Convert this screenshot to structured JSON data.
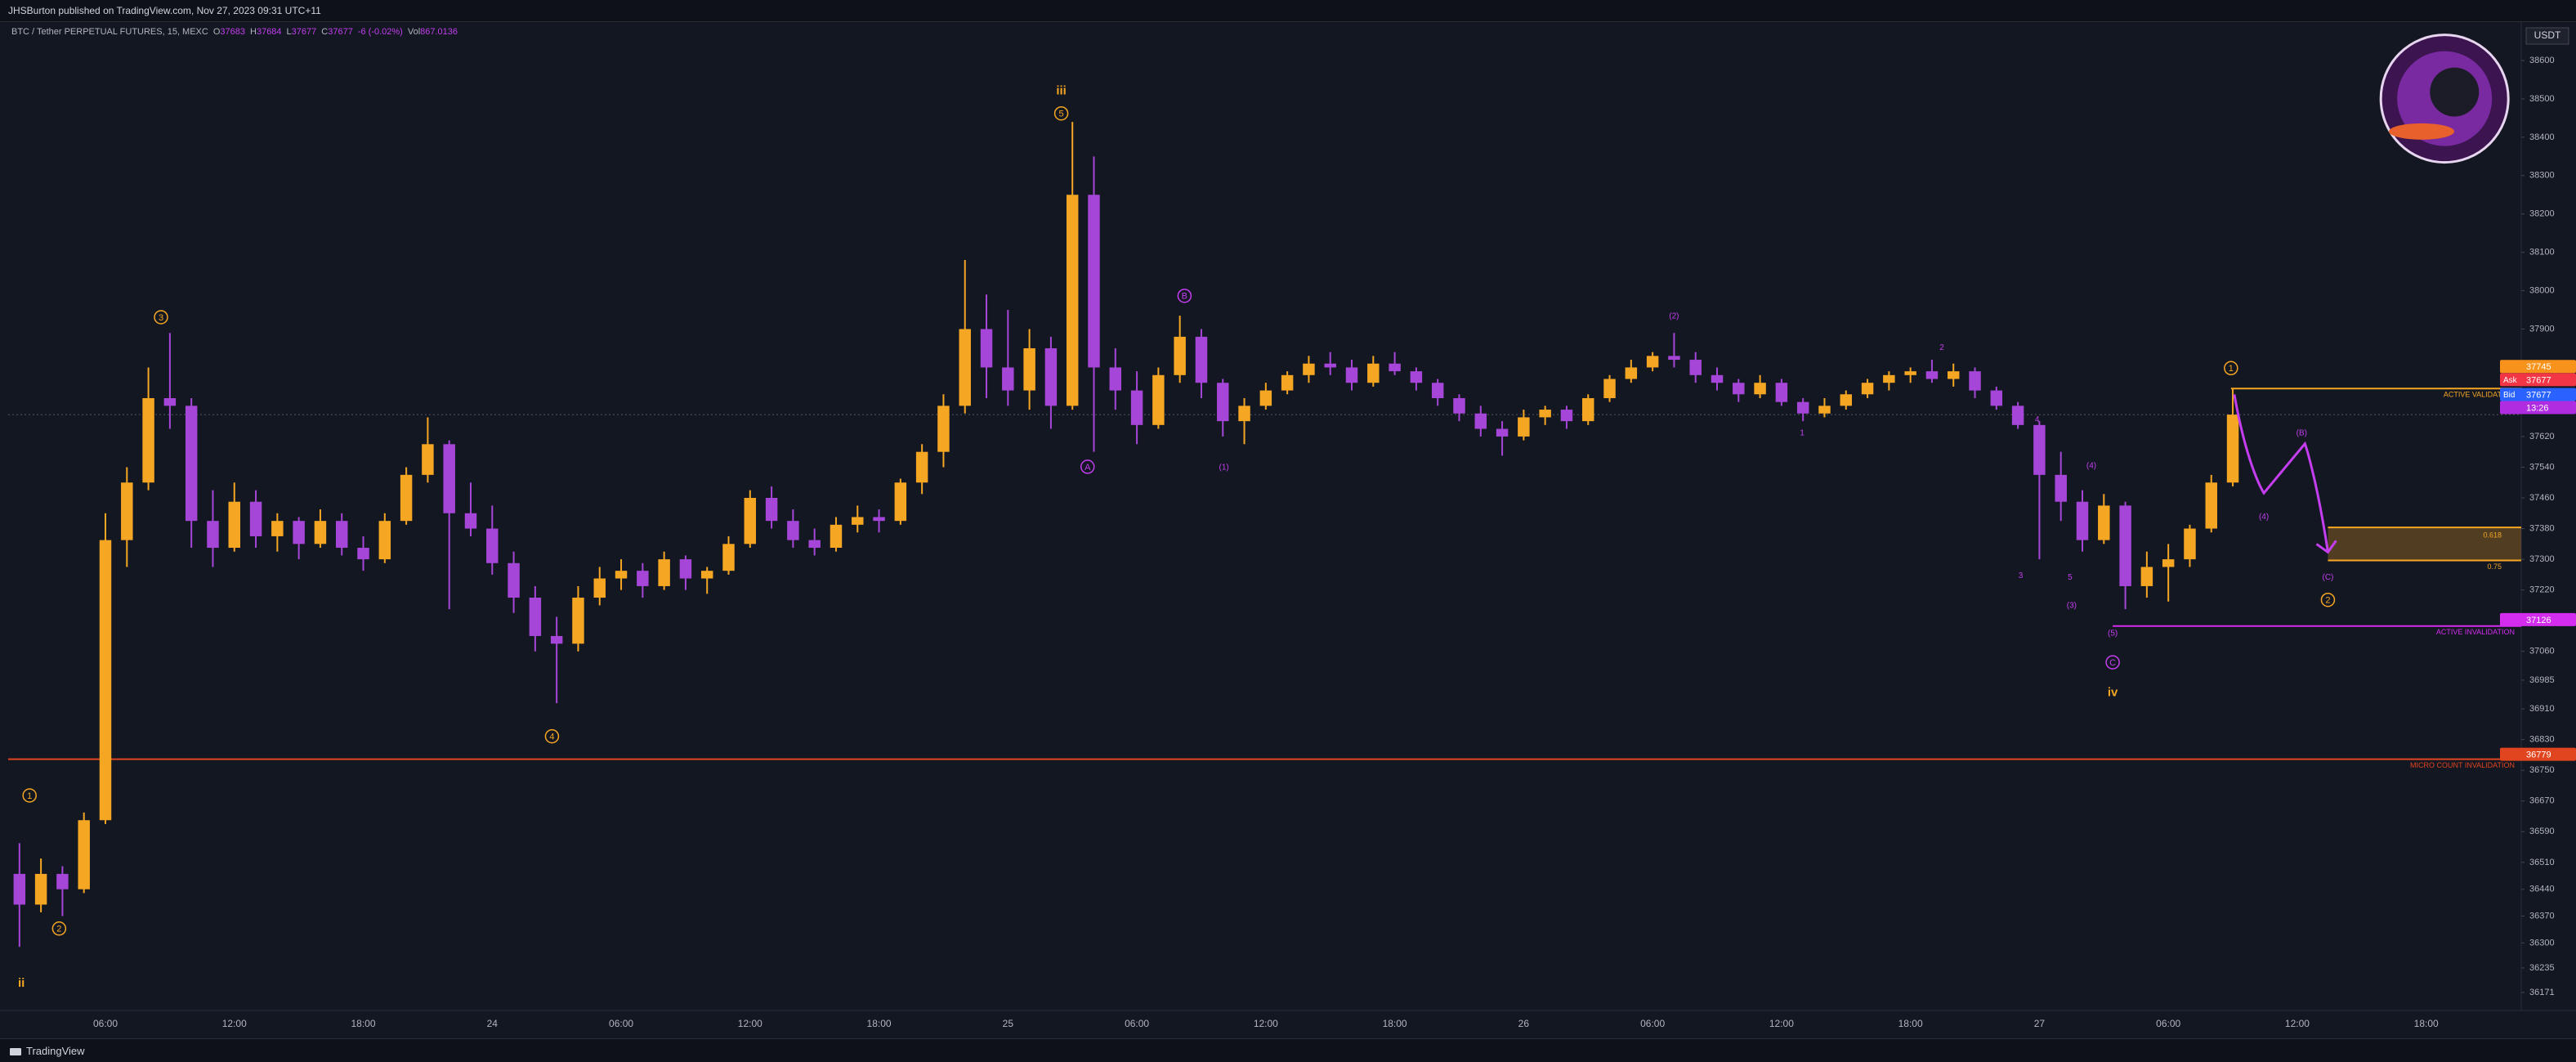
{
  "header": {
    "publisher": "JHSBurton published on TradingView.com, Nov 27, 2023 09:31 UTC+11",
    "symbol": "BTC / Tether PERPETUAL FUTURES, 15, MEXC",
    "legend": [
      {
        "key": "O",
        "value": "37683"
      },
      {
        "key": "H",
        "value": "37684"
      },
      {
        "key": "L",
        "value": "37677"
      },
      {
        "key": "C",
        "value": "37677"
      },
      {
        "value": "-6 (-0.02%)"
      },
      {
        "key": "Vol",
        "value": "867.0136"
      }
    ]
  },
  "chart_data": {
    "type": "candlestick",
    "unit": "USDT",
    "up_color": "#f5a623",
    "down_color": "#a646d8",
    "grid": false,
    "categories": [
      null,
      null,
      null,
      null,
      "06:00",
      null,
      null,
      null,
      null,
      null,
      "12:00",
      null,
      null,
      null,
      null,
      null,
      "18:00",
      null,
      null,
      null,
      null,
      null,
      "24",
      null,
      null,
      null,
      null,
      null,
      "06:00",
      null,
      null,
      null,
      null,
      null,
      "12:00",
      null,
      null,
      null,
      null,
      null,
      "18:00",
      null,
      null,
      null,
      null,
      null,
      "25",
      null,
      null,
      null,
      null,
      null,
      "06:00",
      null,
      null,
      null,
      null,
      null,
      "12:00",
      null,
      null,
      null,
      null,
      null,
      "18:00",
      null,
      null,
      null,
      null,
      null,
      "26",
      null,
      null,
      null,
      null,
      null,
      "06:00",
      null,
      null,
      null,
      null,
      null,
      "12:00",
      null,
      null,
      null,
      null,
      null,
      "18:00",
      null,
      null,
      null,
      null,
      null,
      "27",
      null,
      null,
      null,
      null,
      null,
      "06:00",
      null,
      null,
      null,
      null,
      null,
      "12:00",
      null,
      null,
      null,
      null,
      null,
      "18:00",
      null,
      null,
      null,
      null
    ],
    "open": [
      36480,
      36400,
      36480,
      36440,
      36620,
      37350,
      37500,
      37720,
      37700,
      37400,
      37330,
      37450,
      37360,
      37400,
      37340,
      37400,
      37330,
      37300,
      37400,
      37520,
      37600,
      37420,
      37380,
      37290,
      37200,
      37100,
      37080,
      37200,
      37250,
      37270,
      37230,
      37300,
      37250,
      37270,
      37340,
      37460,
      37400,
      37350,
      37330,
      37390,
      37410,
      37400,
      37500,
      37580,
      37700,
      37900,
      37800,
      37740,
      37850,
      37700,
      38250,
      37800,
      37740,
      37650,
      37780,
      37880,
      37760,
      37660,
      37700,
      37740,
      37780,
      37810,
      37800,
      37760,
      37810,
      37790,
      37760,
      37720,
      37680,
      37640,
      37620,
      37670,
      37690,
      37660,
      37720,
      37770,
      37800,
      37830,
      37820,
      37780,
      37760,
      37730,
      37760,
      37710,
      37680,
      37700,
      37730,
      37760,
      37780,
      37790,
      37770,
      37790,
      37740,
      37700,
      37650,
      37520,
      37450,
      37350,
      37440,
      37230,
      37280,
      37300,
      37380,
      37500,
      null,
      null,
      null,
      null,
      null,
      null,
      null,
      null,
      null,
      null,
      null,
      null,
      null
    ],
    "high": [
      36560,
      36520,
      36500,
      36640,
      37420,
      37540,
      37800,
      37890,
      37720,
      37480,
      37500,
      37480,
      37420,
      37410,
      37430,
      37420,
      37360,
      37420,
      37540,
      37670,
      37610,
      37500,
      37440,
      37320,
      37230,
      37150,
      37230,
      37280,
      37300,
      37290,
      37320,
      37310,
      37280,
      37360,
      37480,
      37490,
      37430,
      37380,
      37410,
      37440,
      37430,
      37510,
      37600,
      37730,
      38080,
      37990,
      37950,
      37900,
      37880,
      38440,
      38350,
      37850,
      37790,
      37800,
      37935,
      37900,
      37770,
      37720,
      37760,
      37790,
      37830,
      37840,
      37820,
      37830,
      37840,
      37800,
      37770,
      37730,
      37700,
      37660,
      37690,
      37700,
      37700,
      37730,
      37780,
      37820,
      37840,
      37890,
      37840,
      37800,
      37770,
      37780,
      37770,
      37720,
      37720,
      37740,
      37770,
      37790,
      37800,
      37820,
      37810,
      37800,
      37750,
      37710,
      37660,
      37580,
      37480,
      37470,
      37450,
      37320,
      37340,
      37390,
      37520,
      37745,
      null,
      null,
      null,
      null,
      null,
      null,
      null,
      null,
      null,
      null,
      null,
      null,
      null
    ],
    "low": [
      36290,
      36380,
      36370,
      36430,
      36610,
      37280,
      37480,
      37640,
      37330,
      37280,
      37320,
      37330,
      37320,
      37300,
      37330,
      37310,
      37270,
      37290,
      37390,
      37500,
      37170,
      37360,
      37260,
      37160,
      37060,
      36925,
      37060,
      37180,
      37220,
      37200,
      37220,
      37220,
      37210,
      37260,
      37330,
      37380,
      37330,
      37310,
      37320,
      37370,
      37370,
      37390,
      37470,
      37540,
      37680,
      37720,
      37700,
      37690,
      37640,
      37690,
      37580,
      37690,
      37600,
      37640,
      37760,
      37720,
      37620,
      37600,
      37690,
      37730,
      37760,
      37780,
      37740,
      37750,
      37780,
      37740,
      37700,
      37660,
      37620,
      37570,
      37610,
      37650,
      37640,
      37650,
      37710,
      37760,
      37790,
      37800,
      37760,
      37740,
      37710,
      37720,
      37700,
      37660,
      37670,
      37690,
      37720,
      37740,
      37760,
      37760,
      37750,
      37720,
      37690,
      37640,
      37300,
      37400,
      37320,
      37340,
      37170,
      37200,
      37190,
      37280,
      37370,
      37490,
      null,
      null,
      null,
      null,
      null,
      null,
      null,
      null,
      null,
      null,
      null,
      null,
      null
    ],
    "close": [
      36400,
      36480,
      36440,
      36620,
      37350,
      37500,
      37720,
      37700,
      37400,
      37330,
      37450,
      37360,
      37400,
      37340,
      37400,
      37330,
      37300,
      37400,
      37520,
      37600,
      37420,
      37380,
      37290,
      37200,
      37100,
      37080,
      37200,
      37250,
      37270,
      37230,
      37300,
      37250,
      37270,
      37340,
      37460,
      37400,
      37350,
      37330,
      37390,
      37410,
      37400,
      37500,
      37580,
      37700,
      37900,
      37800,
      37740,
      37850,
      37700,
      38250,
      37800,
      37740,
      37650,
      37780,
      37880,
      37760,
      37660,
      37700,
      37740,
      37780,
      37810,
      37800,
      37760,
      37810,
      37790,
      37760,
      37720,
      37680,
      37640,
      37620,
      37670,
      37690,
      37660,
      37720,
      37770,
      37800,
      37830,
      37820,
      37780,
      37760,
      37730,
      37760,
      37710,
      37680,
      37700,
      37730,
      37760,
      37780,
      37790,
      37770,
      37790,
      37740,
      37700,
      37650,
      37520,
      37450,
      37350,
      37440,
      37230,
      37280,
      37300,
      37380,
      37500,
      37677,
      null,
      null,
      null,
      null,
      null,
      null,
      null,
      null,
      null,
      null,
      null,
      null,
      null
    ],
    "ylim": [
      36124,
      38698
    ],
    "yticks": [
      38600,
      38500,
      38400,
      38300,
      38200,
      38100,
      38000,
      37900,
      37620,
      37540,
      37460,
      37380,
      37300,
      37220,
      37060,
      36985,
      36910,
      36830,
      36750,
      36670,
      36590,
      36510,
      36440,
      36370,
      36300,
      36235,
      36171
    ],
    "levels": [
      {
        "value": 37745,
        "label": "ACTIVE VALIDATION",
        "color": "#f5a623"
      },
      {
        "value": 37126,
        "label": "ACTIVE INVALIDATION",
        "color": "#d42df0"
      },
      {
        "value": 36779,
        "label": "MICRO COUNT INVALIDATION",
        "color": "#e0451f"
      }
    ],
    "zone": {
      "top": 37383,
      "bottom": 37297,
      "labels": [
        0.618,
        0.75
      ],
      "color": "#f5a623"
    },
    "price_tags": [
      {
        "value": 37745,
        "color": "#f7931a"
      },
      {
        "tag": "Ask",
        "value": 37677,
        "color": "#f23645"
      },
      {
        "tag": "Bid",
        "value": 37677,
        "color": "#2962ff"
      },
      {
        "text": "13:26",
        "color": "#b02ce0"
      },
      {
        "value": 37126,
        "color": "#d42df0"
      },
      {
        "value": 36779,
        "color": "#e0451f"
      }
    ],
    "annotations": [
      {
        "text": "1",
        "style": "circle",
        "color": "#f5a623"
      },
      {
        "text": "2",
        "style": "circle",
        "color": "#f5a623"
      },
      {
        "text": "3",
        "style": "circle",
        "color": "#f5a623"
      },
      {
        "text": "4",
        "style": "circle",
        "color": "#f5a623"
      },
      {
        "text": "5",
        "style": "circle",
        "color": "#f5a623"
      },
      {
        "text": "1",
        "style": "circle",
        "color": "#f5a623"
      },
      {
        "text": "2",
        "style": "circle",
        "color": "#f5a623"
      },
      {
        "text": "ii",
        "style": "roman",
        "color": "#f5a623"
      },
      {
        "text": "iii",
        "style": "roman",
        "color": "#f5a623"
      },
      {
        "text": "iv",
        "style": "roman",
        "color": "#f5a623"
      },
      {
        "text": "B",
        "style": "circle",
        "color": "#c43ef0"
      },
      {
        "text": "A",
        "style": "circle",
        "color": "#c43ef0"
      },
      {
        "text": "C",
        "style": "circle",
        "color": "#c43ef0"
      },
      {
        "text": "(1)",
        "style": "text",
        "color": "#c43ef0"
      },
      {
        "text": "(2)",
        "style": "text",
        "color": "#c43ef0"
      },
      {
        "text": "(3)",
        "style": "text",
        "color": "#c43ef0"
      },
      {
        "text": "(4)",
        "style": "text",
        "color": "#c43ef0"
      },
      {
        "text": "(5)",
        "style": "text",
        "color": "#c43ef0"
      },
      {
        "text": "(4)",
        "style": "text",
        "color": "#c43ef0"
      },
      {
        "text": "(B)",
        "style": "text",
        "color": "#c43ef0"
      },
      {
        "text": "(C)",
        "style": "text",
        "color": "#c43ef0"
      },
      {
        "text": "1",
        "style": "text",
        "color": "#c43ef0"
      },
      {
        "text": "2",
        "style": "text",
        "color": "#c43ef0"
      },
      {
        "text": "3",
        "style": "text",
        "color": "#c43ef0"
      },
      {
        "text": "4",
        "style": "text",
        "color": "#c43ef0"
      },
      {
        "text": "5",
        "style": "text",
        "color": "#c43ef0"
      }
    ]
  },
  "footer": {
    "brand": "TradingView"
  }
}
